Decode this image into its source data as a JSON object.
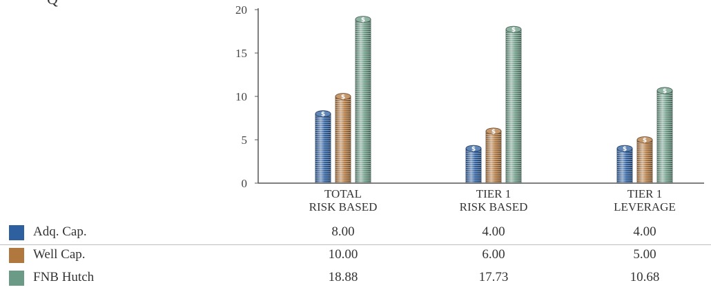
{
  "chart_data": {
    "type": "bar",
    "categories": [
      [
        "TOTAL",
        "RISK BASED"
      ],
      [
        "TIER 1",
        "RISK BASED"
      ],
      [
        "TIER 1",
        "LEVERAGE"
      ]
    ],
    "ylim": [
      0,
      20
    ],
    "yticks": [
      0,
      5,
      10,
      15,
      20
    ],
    "grid": false,
    "legend": "table-below",
    "series": [
      {
        "name": "Adq. Cap.",
        "color": "#2e5f9e",
        "values": [
          8.0,
          4.0,
          4.0
        ],
        "labels": [
          "8.00",
          "4.00",
          "4.00"
        ]
      },
      {
        "name": "Well Cap.",
        "color": "#b0773f",
        "values": [
          10.0,
          6.0,
          5.0
        ],
        "labels": [
          "10.00",
          "6.00",
          "5.00"
        ]
      },
      {
        "name": "FNB Hutch",
        "color": "#6b9a86",
        "values": [
          18.88,
          17.73,
          10.68
        ],
        "labels": [
          "18.88",
          "17.73",
          "10.68"
        ]
      }
    ]
  },
  "stray_glyph": "Q"
}
